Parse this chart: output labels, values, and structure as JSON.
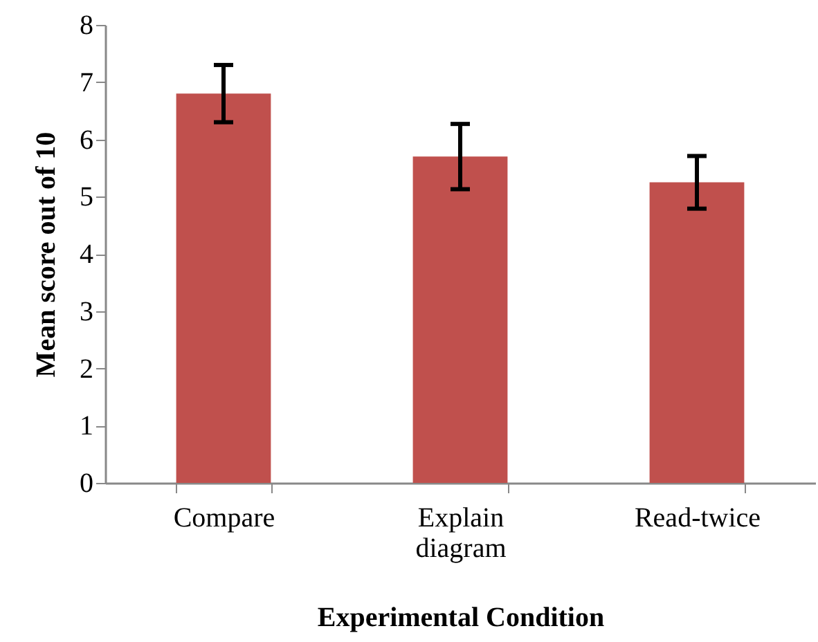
{
  "chart_data": {
    "type": "bar",
    "xlabel": "Experimental Condition",
    "ylabel": "Mean score out of 10",
    "categories": [
      "Compare",
      "Explain diagram",
      "Read-twice"
    ],
    "values": [
      6.8,
      5.7,
      5.25
    ],
    "errors": [
      0.5,
      0.57,
      0.46
    ],
    "color": "#c0504d",
    "ylim": [
      0,
      8
    ],
    "yticks": [
      0,
      1,
      2,
      3,
      4,
      5,
      6,
      7,
      8
    ],
    "grid": false,
    "legend": false
  }
}
